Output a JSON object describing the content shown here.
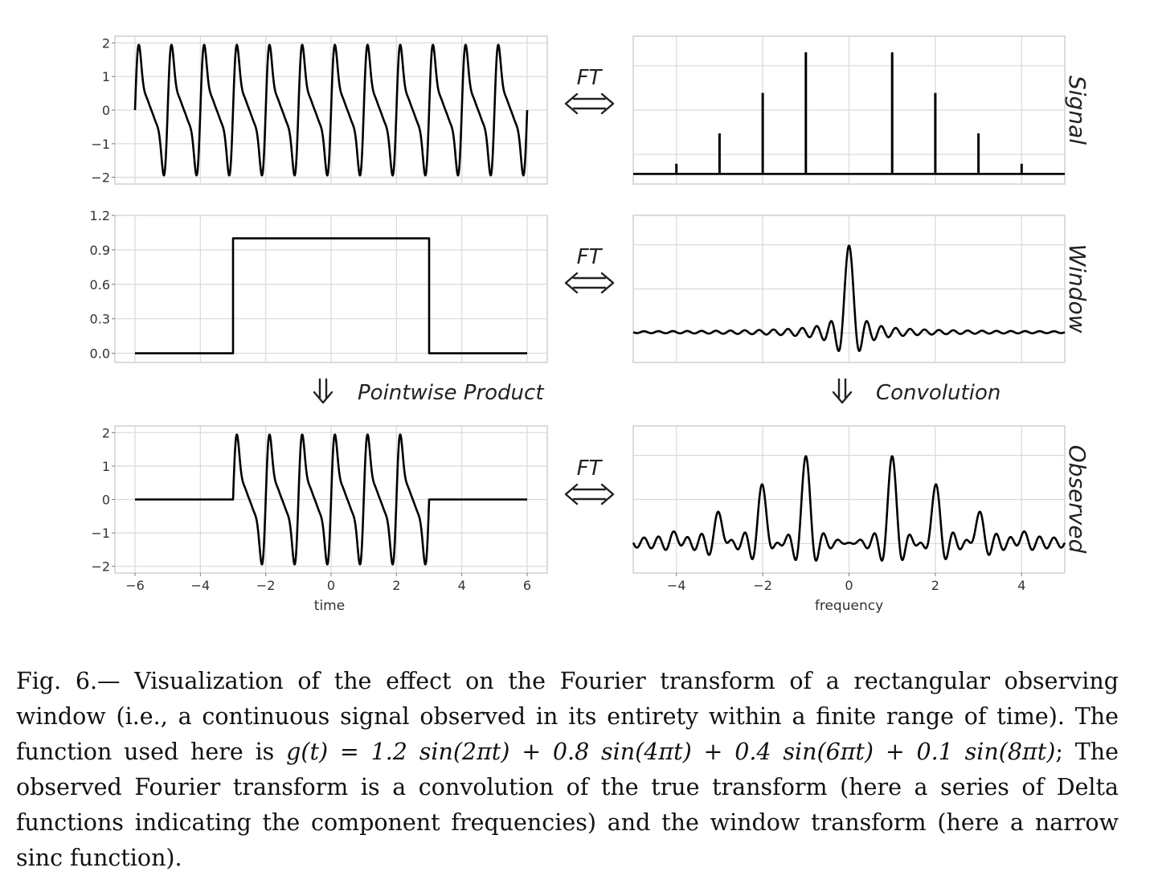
{
  "chart_data": [
    {
      "id": "signal_time",
      "type": "line",
      "row": "Signal",
      "x": {
        "range": [
          -6,
          6
        ],
        "ticks": [
          -6,
          -4,
          -2,
          0,
          2,
          4,
          6
        ]
      },
      "y": {
        "range": [
          -2.2,
          2.2
        ],
        "ticks": [
          2,
          1,
          0,
          -1,
          -2
        ],
        "tick_labels": [
          "2",
          "1",
          "0",
          "−1",
          "−2"
        ]
      },
      "function": "1.2 sin(2πt) + 0.8 sin(4πt) + 0.4 sin(6πt) + 0.1 sin(8πt)",
      "x_span": [
        -6,
        6
      ]
    },
    {
      "id": "signal_freq",
      "type": "stem",
      "row": "Signal",
      "x": {
        "range": [
          -5,
          5
        ],
        "ticks": [
          -4,
          -2,
          0,
          2,
          4
        ]
      },
      "y": {
        "range": [
          -0.05,
          0.68
        ]
      },
      "stems": [
        {
          "f": -4,
          "amp": 0.05
        },
        {
          "f": -3,
          "amp": 0.2
        },
        {
          "f": -2,
          "amp": 0.4
        },
        {
          "f": -1,
          "amp": 0.6
        },
        {
          "f": 1,
          "amp": 0.6
        },
        {
          "f": 2,
          "amp": 0.4
        },
        {
          "f": 3,
          "amp": 0.2
        },
        {
          "f": 4,
          "amp": 0.05
        }
      ]
    },
    {
      "id": "window_time",
      "type": "line",
      "row": "Window",
      "x": {
        "range": [
          -6.6,
          6.6
        ],
        "ticks": [
          -6,
          -4,
          -2,
          0,
          2,
          4,
          6
        ]
      },
      "y": {
        "range": [
          -0.08,
          1.2
        ],
        "ticks": [
          1.2,
          0.9,
          0.6,
          0.3,
          0.0
        ],
        "tick_labels": [
          "1.2",
          "0.9",
          "0.6",
          "0.3",
          "0.0"
        ]
      },
      "window_edges": [
        -3,
        3
      ],
      "x_span": [
        -6,
        6
      ]
    },
    {
      "id": "window_freq",
      "type": "line",
      "row": "Window",
      "x": {
        "range": [
          -5,
          5
        ],
        "ticks": [
          -4,
          -2,
          0,
          2,
          4
        ]
      },
      "y": {
        "range": [
          -0.35,
          1.35
        ]
      },
      "function": "sinc(6 f)"
    },
    {
      "id": "observed_time",
      "type": "line",
      "row": "Observed",
      "x": {
        "range": [
          -6.6,
          6.6
        ],
        "ticks": [
          -6,
          -4,
          -2,
          0,
          2,
          4,
          6
        ],
        "tick_labels": [
          "−6",
          "−4",
          "−2",
          "0",
          "2",
          "4",
          "6"
        ],
        "label": "time"
      },
      "y": {
        "range": [
          -2.2,
          2.2
        ],
        "ticks": [
          2,
          1,
          0,
          -1,
          -2
        ],
        "tick_labels": [
          "2",
          "1",
          "0",
          "−1",
          "−2"
        ]
      },
      "function": "g(t) · window(t)",
      "x_span": [
        -6,
        6
      ]
    },
    {
      "id": "observed_freq",
      "type": "line",
      "row": "Observed",
      "x": {
        "range": [
          -5,
          5
        ],
        "ticks": [
          -4,
          -2,
          0,
          2,
          4
        ],
        "tick_labels": [
          "−4",
          "−2",
          "0",
          "2",
          "4"
        ],
        "label": "frequency"
      },
      "y": {
        "range": [
          -0.35,
          1.35
        ]
      },
      "function": "Σ sinc(6 (f − fk)) over components"
    }
  ],
  "annotations": {
    "ft_label": "FT",
    "product_label": "Pointwise Product",
    "convolution_label": "Convolution",
    "down_arrow": "⇓"
  },
  "row_labels": [
    "Signal",
    "Window",
    "Observed"
  ],
  "caption": {
    "lead": "Fig. 6.— Visualization of the effect on the Fourier transform of a rectangular observing window (i.e., a continuous signal observed in its entirety within a finite range of time). The function used here is ",
    "formula": "g(t) = 1.2 sin(2πt) + 0.8 sin(4πt) + 0.4 sin(6πt) + 0.1 sin(8πt)",
    "tail": "; The observed Fourier transform is a convolution of the true transform (here a series of Delta functions indicating the component frequencies) and the window transform (here a narrow sinc function)."
  }
}
